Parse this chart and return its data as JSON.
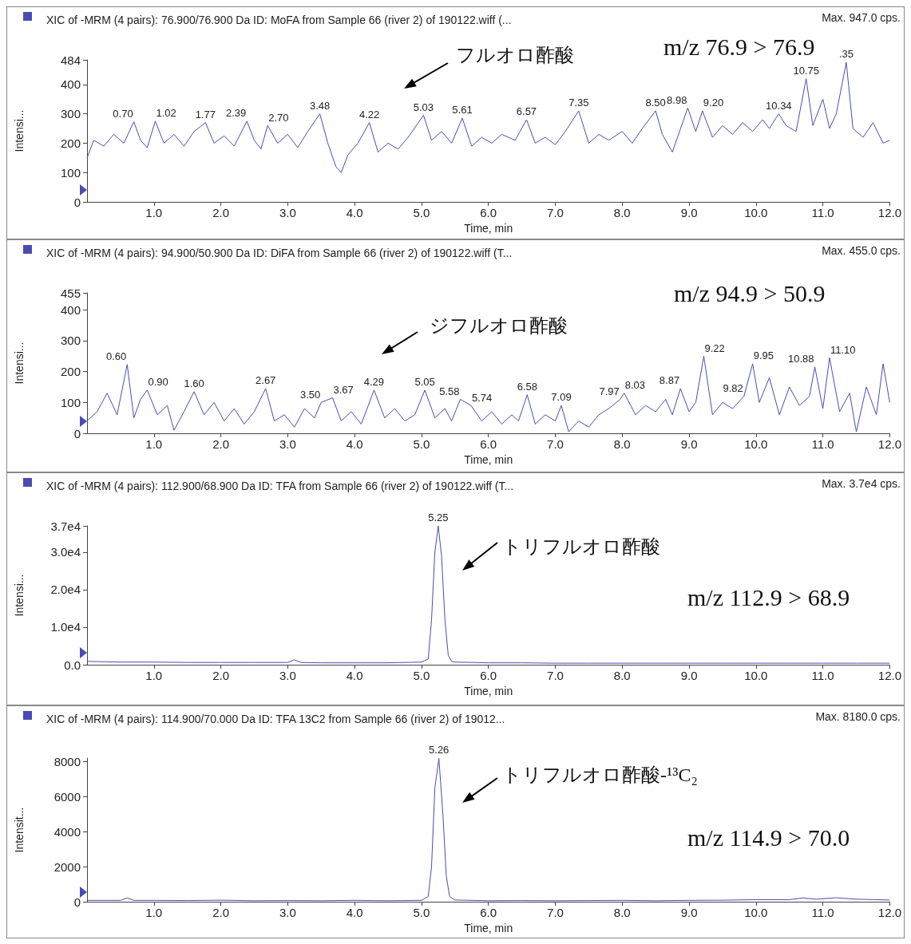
{
  "chart_data": [
    {
      "type": "line",
      "title": "XIC of -MRM (4 pairs): 76.900/76.900 Da ID: MoFA from Sample 66 (river 2) of 190122.wiff (...",
      "xlabel": "Time, min",
      "ylabel": "Intensi...",
      "xlim": [
        0,
        12
      ],
      "xticks": [
        {
          "value": 1,
          "label": "1.0"
        },
        {
          "value": 2,
          "label": "2.0"
        },
        {
          "value": 3,
          "label": "3.0"
        },
        {
          "value": 4,
          "label": "4.0"
        },
        {
          "value": 5,
          "label": "5.0"
        },
        {
          "value": 6,
          "label": "6.0"
        },
        {
          "value": 7,
          "label": "7.0"
        },
        {
          "value": 8,
          "label": "8.0"
        },
        {
          "value": 9,
          "label": "9.0"
        },
        {
          "value": 10,
          "label": "10.0"
        },
        {
          "value": 11,
          "label": "11.0"
        },
        {
          "value": 12,
          "label": "12.0"
        }
      ],
      "ylim": [
        0,
        484
      ],
      "yticks": [
        0,
        100,
        200,
        300,
        400,
        484
      ],
      "grid": false,
      "series": [
        {
          "color": "#4b4bb4",
          "x": [
            0,
            0.1,
            0.25,
            0.4,
            0.55,
            0.7,
            0.8,
            0.9,
            1.02,
            1.15,
            1.3,
            1.45,
            1.6,
            1.77,
            1.9,
            2.05,
            2.2,
            2.39,
            2.5,
            2.6,
            2.7,
            2.85,
            3.0,
            3.15,
            3.3,
            3.48,
            3.6,
            3.72,
            3.8,
            3.9,
            4.05,
            4.22,
            4.35,
            4.5,
            4.65,
            4.8,
            5.03,
            5.15,
            5.3,
            5.45,
            5.61,
            5.75,
            5.9,
            6.05,
            6.2,
            6.4,
            6.57,
            6.7,
            6.85,
            7.0,
            7.15,
            7.35,
            7.5,
            7.65,
            7.8,
            8.0,
            8.15,
            8.3,
            8.5,
            8.6,
            8.75,
            8.98,
            9.1,
            9.2,
            9.35,
            9.5,
            9.65,
            9.8,
            9.95,
            10.1,
            10.2,
            10.34,
            10.45,
            10.6,
            10.75,
            10.85,
            11.0,
            11.1,
            11.2,
            11.35,
            11.45,
            11.6,
            11.75,
            11.9,
            12.0
          ],
          "values": [
            150,
            210,
            190,
            230,
            200,
            273,
            210,
            185,
            275,
            200,
            230,
            190,
            240,
            270,
            200,
            225,
            190,
            275,
            210,
            180,
            260,
            200,
            230,
            185,
            240,
            300,
            200,
            120,
            100,
            160,
            200,
            270,
            170,
            200,
            180,
            220,
            295,
            210,
            240,
            200,
            285,
            190,
            220,
            200,
            230,
            210,
            280,
            200,
            220,
            195,
            240,
            310,
            200,
            230,
            210,
            240,
            200,
            250,
            310,
            230,
            170,
            320,
            240,
            310,
            220,
            260,
            230,
            270,
            240,
            280,
            250,
            300,
            260,
            240,
            420,
            260,
            350,
            250,
            300,
            475,
            250,
            220,
            270,
            200,
            210
          ]
        }
      ],
      "annotations": [
        "Max. 947.0 cps.",
        "フルオロ酢酸",
        "m/z 76.9 > 76.9",
        {
          "text": "0.70",
          "x": 0.7,
          "y": 273
        },
        {
          "text": "1.02",
          "x": 1.02,
          "y": 275
        },
        {
          "text": "1.77",
          "x": 1.77,
          "y": 270
        },
        {
          "text": "2.39",
          "x": 2.39,
          "y": 275
        },
        {
          "text": "2.70",
          "x": 2.7,
          "y": 260
        },
        {
          "text": "3.48",
          "x": 3.48,
          "y": 300
        },
        {
          "text": "4.22",
          "x": 4.22,
          "y": 270
        },
        {
          "text": "5.03",
          "x": 5.03,
          "y": 295
        },
        {
          "text": "5.61",
          "x": 5.61,
          "y": 285
        },
        {
          "text": "6.57",
          "x": 6.57,
          "y": 280
        },
        {
          "text": "7.35",
          "x": 7.35,
          "y": 310
        },
        {
          "text": "8.50",
          "x": 8.5,
          "y": 310
        },
        {
          "text": "8.98",
          "x": 8.98,
          "y": 320
        },
        {
          "text": "9.20",
          "x": 9.2,
          "y": 310
        },
        {
          "text": "10.34",
          "x": 10.34,
          "y": 300
        },
        {
          "text": "10.75",
          "x": 10.75,
          "y": 420
        },
        {
          "text": ".35",
          "x": 11.35,
          "y": 475
        }
      ]
    },
    {
      "type": "line",
      "title": "XIC of -MRM (4 pairs): 94.900/50.900 Da ID: DiFA from Sample 66 (river 2) of 190122.wiff (T...",
      "xlabel": "Time, min",
      "ylabel": "Intensi...",
      "xlim": [
        0,
        12
      ],
      "xticks": [
        {
          "value": 1,
          "label": "1.0"
        },
        {
          "value": 2,
          "label": "2.0"
        },
        {
          "value": 3,
          "label": "3.0"
        },
        {
          "value": 4,
          "label": "4.0"
        },
        {
          "value": 5,
          "label": "5.0"
        },
        {
          "value": 6,
          "label": "6.0"
        },
        {
          "value": 7,
          "label": "7.0"
        },
        {
          "value": 8,
          "label": "8.0"
        },
        {
          "value": 9,
          "label": "9.0"
        },
        {
          "value": 10,
          "label": "10.0"
        },
        {
          "value": 11,
          "label": "11.0"
        },
        {
          "value": 12,
          "label": "12.0"
        }
      ],
      "ylim": [
        0,
        455
      ],
      "yticks": [
        0,
        100,
        200,
        300,
        400,
        455
      ],
      "grid": false,
      "series": [
        {
          "color": "#4b4bb4",
          "x": [
            0,
            0.15,
            0.3,
            0.45,
            0.6,
            0.7,
            0.8,
            0.9,
            1.05,
            1.2,
            1.3,
            1.45,
            1.6,
            1.75,
            1.9,
            2.05,
            2.2,
            2.35,
            2.5,
            2.67,
            2.8,
            2.95,
            3.1,
            3.25,
            3.4,
            3.5,
            3.67,
            3.8,
            3.95,
            4.1,
            4.29,
            4.45,
            4.6,
            4.75,
            4.9,
            5.05,
            5.2,
            5.35,
            5.45,
            5.58,
            5.74,
            5.9,
            6.05,
            6.2,
            6.35,
            6.45,
            6.58,
            6.7,
            6.85,
            7.0,
            7.09,
            7.2,
            7.35,
            7.5,
            7.65,
            7.8,
            7.97,
            8.03,
            8.2,
            8.35,
            8.5,
            8.65,
            8.75,
            8.87,
            9.0,
            9.1,
            9.22,
            9.35,
            9.5,
            9.65,
            9.82,
            9.95,
            10.05,
            10.2,
            10.35,
            10.5,
            10.65,
            10.8,
            10.88,
            11.0,
            11.1,
            11.25,
            11.4,
            11.5,
            11.65,
            11.8,
            11.9,
            12.0
          ],
          "values": [
            40,
            70,
            130,
            60,
            223,
            50,
            110,
            140,
            60,
            90,
            10,
            70,
            135,
            60,
            100,
            40,
            80,
            30,
            70,
            145,
            40,
            60,
            20,
            80,
            50,
            100,
            115,
            40,
            70,
            30,
            140,
            50,
            80,
            40,
            60,
            140,
            50,
            80,
            40,
            110,
            90,
            40,
            70,
            30,
            60,
            40,
            125,
            30,
            60,
            40,
            90,
            5,
            40,
            20,
            60,
            80,
            110,
            130,
            60,
            90,
            70,
            110,
            60,
            145,
            70,
            100,
            250,
            60,
            100,
            80,
            120,
            225,
            100,
            180,
            60,
            150,
            90,
            120,
            215,
            80,
            245,
            70,
            130,
            5,
            150,
            60,
            225,
            100
          ]
        }
      ],
      "annotations": [
        "Max. 455.0 cps.",
        "ジフルオロ酢酸",
        "m/z 94.9 > 50.9",
        {
          "text": "0.60",
          "x": 0.6,
          "y": 223
        },
        {
          "text": "0.90",
          "x": 0.9,
          "y": 140
        },
        {
          "text": "1.60",
          "x": 1.6,
          "y": 135
        },
        {
          "text": "2.67",
          "x": 2.67,
          "y": 145
        },
        {
          "text": "3.50",
          "x": 3.5,
          "y": 100
        },
        {
          "text": "3.67",
          "x": 3.67,
          "y": 115
        },
        {
          "text": "4.29",
          "x": 4.29,
          "y": 140
        },
        {
          "text": "5.05",
          "x": 5.05,
          "y": 140
        },
        {
          "text": "5.58",
          "x": 5.58,
          "y": 110
        },
        {
          "text": "5.74",
          "x": 5.74,
          "y": 90
        },
        {
          "text": "6.58",
          "x": 6.58,
          "y": 125
        },
        {
          "text": "7.09",
          "x": 7.09,
          "y": 90
        },
        {
          "text": "7.97",
          "x": 7.97,
          "y": 110
        },
        {
          "text": "8.03",
          "x": 8.03,
          "y": 130
        },
        {
          "text": "8.87",
          "x": 8.87,
          "y": 145
        },
        {
          "text": "9.22",
          "x": 9.22,
          "y": 250
        },
        {
          "text": "9.82",
          "x": 9.82,
          "y": 120
        },
        {
          "text": "9.95",
          "x": 9.95,
          "y": 225
        },
        {
          "text": "10.88",
          "x": 10.88,
          "y": 215
        },
        {
          "text": "11.10",
          "x": 11.1,
          "y": 245
        }
      ]
    },
    {
      "type": "line",
      "title": "XIC of -MRM (4 pairs): 112.900/68.900 Da ID: TFA from Sample 66 (river 2) of 190122.wiff (T...",
      "xlabel": "Time, min",
      "ylabel": "Intensi...",
      "xlim": [
        0,
        12
      ],
      "xticks": [
        {
          "value": 1,
          "label": "1.0"
        },
        {
          "value": 2,
          "label": "2.0"
        },
        {
          "value": 3,
          "label": "3.0"
        },
        {
          "value": 4,
          "label": "4.0"
        },
        {
          "value": 5,
          "label": "5.0"
        },
        {
          "value": 6,
          "label": "6.0"
        },
        {
          "value": 7,
          "label": "7.0"
        },
        {
          "value": 8,
          "label": "8.0"
        },
        {
          "value": 9,
          "label": "9.0"
        },
        {
          "value": 10,
          "label": "10.0"
        },
        {
          "value": 11,
          "label": "11.0"
        },
        {
          "value": 12,
          "label": "12.0"
        }
      ],
      "ylim": [
        0,
        37000
      ],
      "yticks": [
        {
          "value": 0,
          "label": "0.0"
        },
        {
          "value": 10000,
          "label": "1.0e4"
        },
        {
          "value": 20000,
          "label": "2.0e4"
        },
        {
          "value": 30000,
          "label": "3.0e4"
        },
        {
          "value": 37000,
          "label": "3.7e4"
        }
      ],
      "grid": false,
      "series": [
        {
          "color": "#4b4bb4",
          "x": [
            0,
            0.5,
            1,
            1.5,
            2,
            2.5,
            3,
            3.1,
            3.2,
            3.5,
            4,
            4.5,
            5,
            5.1,
            5.15,
            5.2,
            5.25,
            5.3,
            5.35,
            5.4,
            5.45,
            5.5,
            6,
            6.5,
            7,
            7.5,
            8,
            8.5,
            9,
            9.5,
            10,
            10.5,
            11,
            11.5,
            12
          ],
          "values": [
            900,
            700,
            700,
            600,
            600,
            600,
            600,
            1300,
            600,
            500,
            500,
            500,
            700,
            1500,
            12000,
            30000,
            37000,
            29000,
            12000,
            2500,
            900,
            700,
            500,
            500,
            400,
            400,
            400,
            400,
            400,
            400,
            400,
            400,
            400,
            400,
            400
          ]
        }
      ],
      "annotations": [
        "Max. 3.7e4 cps.",
        "トリフルオロ酢酸",
        "m/z 112.9 > 68.9",
        {
          "text": "5.25",
          "x": 5.25,
          "y": 37000
        }
      ]
    },
    {
      "type": "line",
      "title": "XIC of -MRM (4 pairs): 114.900/70.000 Da ID: TFA 13C2 from Sample 66 (river 2) of 19012...",
      "xlabel": "Time, min",
      "ylabel": "Intensit...",
      "xlim": [
        0,
        12
      ],
      "xticks": [
        {
          "value": 1,
          "label": "1.0"
        },
        {
          "value": 2,
          "label": "2.0"
        },
        {
          "value": 3,
          "label": "3.0"
        },
        {
          "value": 4,
          "label": "4.0"
        },
        {
          "value": 5,
          "label": "5.0"
        },
        {
          "value": 6,
          "label": "6.0"
        },
        {
          "value": 7,
          "label": "7.0"
        },
        {
          "value": 8,
          "label": "8.0"
        },
        {
          "value": 9,
          "label": "9.0"
        },
        {
          "value": 10,
          "label": "10.0"
        },
        {
          "value": 11,
          "label": "11.0"
        },
        {
          "value": 12,
          "label": "12.0"
        }
      ],
      "ylim": [
        0,
        8200
      ],
      "yticks": [
        0,
        2000,
        4000,
        6000,
        8000
      ],
      "grid": false,
      "series": [
        {
          "color": "#4b4bb4",
          "x": [
            0,
            0.5,
            0.6,
            0.7,
            1,
            1.5,
            2,
            2.5,
            3,
            3.5,
            4,
            4.5,
            5,
            5.1,
            5.15,
            5.2,
            5.26,
            5.32,
            5.37,
            5.42,
            5.5,
            6,
            6.5,
            7,
            7.5,
            8,
            8.5,
            9,
            9.5,
            10,
            10.5,
            10.7,
            10.9,
            11.2,
            11.5,
            12
          ],
          "values": [
            80,
            80,
            220,
            80,
            80,
            70,
            90,
            60,
            70,
            60,
            80,
            60,
            80,
            300,
            2000,
            6500,
            8180,
            5000,
            1500,
            300,
            100,
            60,
            70,
            60,
            70,
            80,
            60,
            80,
            90,
            120,
            120,
            220,
            150,
            230,
            150,
            100
          ]
        }
      ],
      "annotations": [
        "Max. 8180.0 cps.",
        "トリフルオロ酢酸-¹³C₂",
        "m/z 114.9 > 70.0",
        {
          "text": "5.26",
          "x": 5.26,
          "y": 8180
        }
      ]
    }
  ]
}
